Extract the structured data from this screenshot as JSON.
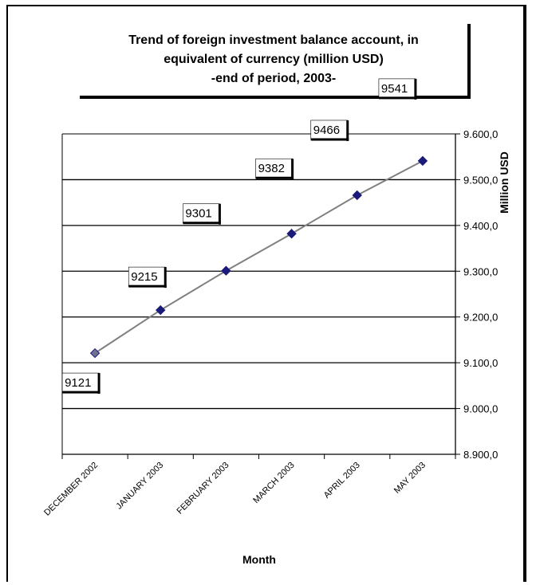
{
  "chart_data": {
    "type": "line",
    "title_lines": [
      "Trend of foreign investment balance account, in",
      "equivalent of currency (million USD)",
      "-end of period, 2003-"
    ],
    "xlabel": "Month",
    "ylabel": "Million USD",
    "categories": [
      "DECEMBER 2002",
      "JANUARY 2003",
      "FEBRUARY 2003",
      "MARCH 2003",
      "APRIL 2003",
      "MAY 2003"
    ],
    "values": [
      9121,
      9215,
      9301,
      9382,
      9466,
      9541
    ],
    "data_labels": [
      "9121",
      "9215",
      "9301",
      "9382",
      "9466",
      "9541"
    ],
    "ylim": [
      8900,
      9600
    ],
    "yticks": [
      8900,
      9000,
      9100,
      9200,
      9300,
      9400,
      9500,
      9600
    ],
    "ytick_labels": [
      "8.900,0",
      "9.000,0",
      "9.100,0",
      "9.200,0",
      "9.300,0",
      "9.400,0",
      "9.500,0",
      "9.600,0"
    ],
    "y_axis_side": "right",
    "grid": true,
    "colors": {
      "marker": "#1a1a7a",
      "line": "#808080",
      "grid": "#000000"
    }
  }
}
